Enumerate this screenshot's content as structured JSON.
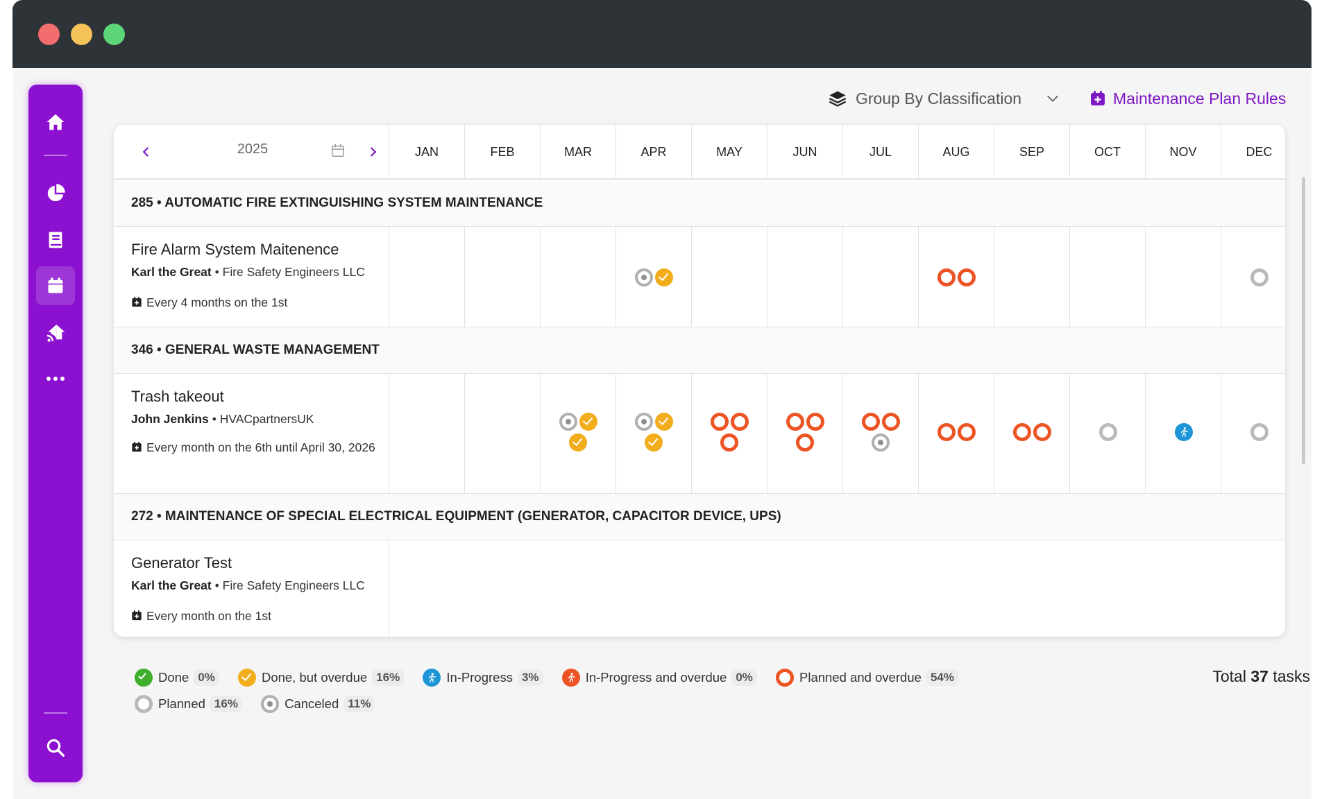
{
  "toolbar": {
    "group_by_label": "Group By Classification",
    "rules_label": "Maintenance Plan Rules"
  },
  "sidebar": {
    "items": [
      "home",
      "analytics",
      "documents",
      "calendar",
      "assets",
      "more",
      "search"
    ],
    "active": "calendar"
  },
  "calendar": {
    "year": "2025",
    "months": [
      "JAN",
      "FEB",
      "MAR",
      "APR",
      "MAY",
      "JUN",
      "JUL",
      "AUG",
      "SEP",
      "OCT",
      "NOV",
      "DEC"
    ]
  },
  "groups": [
    {
      "title": "285 • AUTOMATIC FIRE EXTINGUISHING SYSTEM MAINTENANCE",
      "task": {
        "name": "Fire Alarm System Maitenence",
        "assignee": "Karl the Great",
        "company": "Fire Safety Engineers LLC",
        "schedule": "Every 4 months on the 1st"
      }
    },
    {
      "title": "346 • GENERAL WASTE MANAGEMENT",
      "task": {
        "name": "Trash takeout",
        "assignee": "John Jenkins",
        "company": "HVACpartnersUK",
        "schedule": "Every month on the 6th until April 30, 2026"
      }
    },
    {
      "title": "272 • MAINTENANCE OF SPECIAL ELECTRICAL EQUIPMENT (GENERATOR, CAPACITOR DEVICE, UPS)",
      "task": {
        "name": "Generator Test",
        "assignee": "Karl the Great",
        "company": "Fire Safety Engineers LLC",
        "schedule": "Every month on the 1st"
      }
    }
  ],
  "separator": "•",
  "legend": [
    {
      "label": "Done",
      "pct": "0%",
      "color": "#3fae2a"
    },
    {
      "label": "Done, but overdue",
      "pct": "16%",
      "color": "#f2ad1c"
    },
    {
      "label": "In-Progress",
      "pct": "3%",
      "color": "#1e95d6"
    },
    {
      "label": "In-Progress and overdue",
      "pct": "0%",
      "color": "#ec5424"
    },
    {
      "label": "Planned and overdue",
      "pct": "54%",
      "color": "#ec5424"
    },
    {
      "label": "Planned",
      "pct": "16%",
      "color": "#b9b9b9"
    },
    {
      "label": "Canceled",
      "pct": "11%",
      "color": "#b0b0b0"
    }
  ],
  "total": {
    "prefix": "Total",
    "count": "37",
    "suffix": "tasks"
  },
  "colors": {
    "accent": "#8b10cf",
    "overdue": "#ec5424",
    "done_overdue": "#f2ad1c",
    "in_progress": "#1e95d6"
  }
}
